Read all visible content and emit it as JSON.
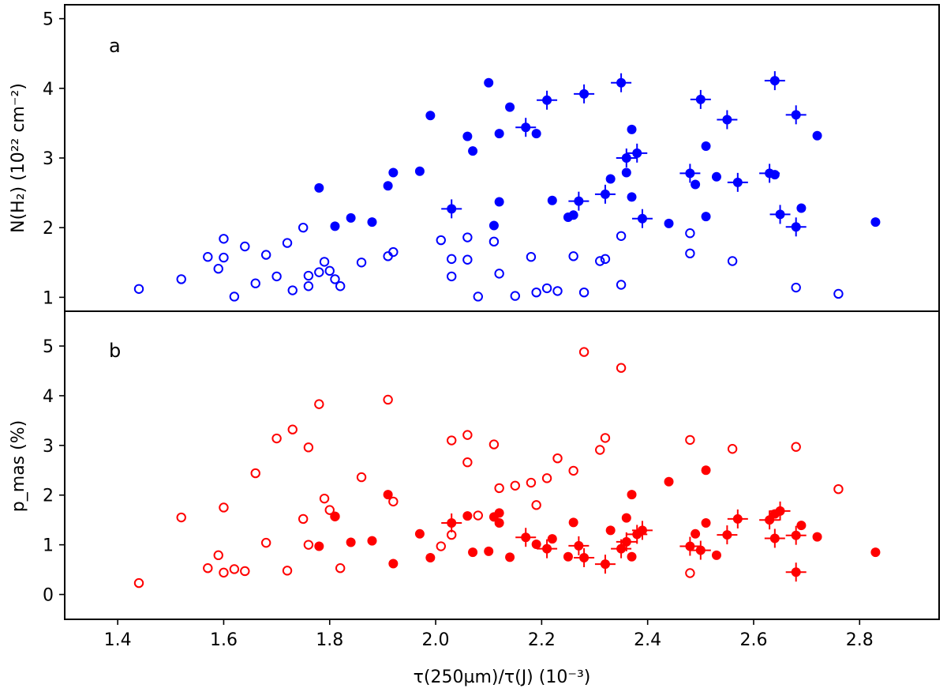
{
  "chart_data": [
    {
      "type": "scatter",
      "panel_label": "a",
      "ylabel": "N(H₂)  (10²² cm⁻²)",
      "xlim": [
        1.3,
        2.95
      ],
      "ylim": [
        0.8,
        5.2
      ],
      "yticks": [
        "1",
        "2",
        "3",
        "4",
        "5"
      ],
      "color": "#0000ff",
      "series": [
        {
          "marker": "open-circle",
          "points": [
            [
              1.44,
              1.12
            ],
            [
              1.52,
              1.26
            ],
            [
              1.57,
              1.58
            ],
            [
              1.59,
              1.41
            ],
            [
              1.6,
              1.84
            ],
            [
              1.6,
              1.57
            ],
            [
              1.62,
              1.01
            ],
            [
              1.64,
              1.73
            ],
            [
              1.66,
              1.2
            ],
            [
              1.68,
              1.61
            ],
            [
              1.7,
              1.3
            ],
            [
              1.72,
              1.78
            ],
            [
              1.73,
              1.1
            ],
            [
              1.75,
              2.0
            ],
            [
              1.76,
              1.31
            ],
            [
              1.76,
              1.16
            ],
            [
              1.78,
              1.36
            ],
            [
              1.79,
              1.51
            ],
            [
              1.8,
              1.38
            ],
            [
              1.81,
              1.26
            ],
            [
              1.82,
              1.16
            ],
            [
              1.86,
              1.5
            ],
            [
              1.91,
              1.59
            ],
            [
              1.92,
              1.65
            ],
            [
              2.01,
              1.82
            ],
            [
              2.03,
              1.3
            ],
            [
              2.03,
              1.55
            ],
            [
              2.06,
              1.54
            ],
            [
              2.06,
              1.86
            ],
            [
              2.08,
              1.01
            ],
            [
              2.11,
              1.8
            ],
            [
              2.12,
              1.34
            ],
            [
              2.15,
              1.02
            ],
            [
              2.18,
              1.58
            ],
            [
              2.19,
              1.07
            ],
            [
              2.21,
              1.13
            ],
            [
              2.23,
              1.09
            ],
            [
              2.26,
              1.59
            ],
            [
              2.28,
              1.07
            ],
            [
              2.31,
              1.52
            ],
            [
              2.32,
              1.55
            ],
            [
              2.35,
              1.88
            ],
            [
              2.35,
              1.18
            ],
            [
              2.48,
              1.92
            ],
            [
              2.48,
              1.63
            ],
            [
              2.56,
              1.52
            ],
            [
              2.68,
              1.14
            ],
            [
              2.76,
              1.05
            ]
          ]
        },
        {
          "marker": "filled-circle",
          "points": [
            [
              1.78,
              2.57
            ],
            [
              1.81,
              2.02
            ],
            [
              1.84,
              2.14
            ],
            [
              1.88,
              2.08
            ],
            [
              1.91,
              2.6
            ],
            [
              1.92,
              2.79
            ],
            [
              1.97,
              2.81
            ],
            [
              1.99,
              3.61
            ],
            [
              2.06,
              3.31
            ],
            [
              2.07,
              3.1
            ],
            [
              2.1,
              4.08
            ],
            [
              2.11,
              2.03
            ],
            [
              2.12,
              3.35
            ],
            [
              2.12,
              2.37
            ],
            [
              2.14,
              3.73
            ],
            [
              2.19,
              3.35
            ],
            [
              2.22,
              2.39
            ],
            [
              2.25,
              2.15
            ],
            [
              2.26,
              2.18
            ],
            [
              2.33,
              2.7
            ],
            [
              2.36,
              2.79
            ],
            [
              2.37,
              2.44
            ],
            [
              2.37,
              3.41
            ],
            [
              2.44,
              2.06
            ],
            [
              2.49,
              2.62
            ],
            [
              2.51,
              3.17
            ],
            [
              2.51,
              2.16
            ],
            [
              2.53,
              2.73
            ],
            [
              2.64,
              2.76
            ],
            [
              2.69,
              2.28
            ],
            [
              2.72,
              3.32
            ],
            [
              2.83,
              2.08
            ]
          ]
        },
        {
          "marker": "filled-circle-errorbars",
          "points": [
            [
              2.03,
              2.27
            ],
            [
              2.17,
              3.44
            ],
            [
              2.21,
              3.83
            ],
            [
              2.27,
              2.38
            ],
            [
              2.28,
              3.92
            ],
            [
              2.32,
              2.48
            ],
            [
              2.35,
              4.08
            ],
            [
              2.36,
              3.0
            ],
            [
              2.38,
              3.07
            ],
            [
              2.39,
              2.13
            ],
            [
              2.48,
              2.78
            ],
            [
              2.5,
              3.84
            ],
            [
              2.55,
              3.55
            ],
            [
              2.57,
              2.65
            ],
            [
              2.63,
              2.78
            ],
            [
              2.64,
              4.11
            ],
            [
              2.65,
              2.19
            ],
            [
              2.68,
              3.62
            ],
            [
              2.68,
              2.01
            ]
          ]
        }
      ]
    },
    {
      "type": "scatter",
      "panel_label": "b",
      "ylabel": "p_mas  (%)",
      "xlabel": "τ(250µm)/τ(J)  (10⁻³)",
      "xlim": [
        1.3,
        2.95
      ],
      "ylim": [
        -0.5,
        5.7
      ],
      "xticks": [
        "1.4",
        "1.6",
        "1.8",
        "2.0",
        "2.2",
        "2.4",
        "2.6",
        "2.8"
      ],
      "yticks": [
        "0",
        "1",
        "2",
        "3",
        "4",
        "5"
      ],
      "color": "#ff0000",
      "series": [
        {
          "marker": "open-circle",
          "points": [
            [
              1.44,
              0.23
            ],
            [
              1.52,
              1.55
            ],
            [
              1.57,
              0.53
            ],
            [
              1.59,
              0.79
            ],
            [
              1.6,
              0.44
            ],
            [
              1.6,
              1.75
            ],
            [
              1.62,
              0.51
            ],
            [
              1.64,
              0.47
            ],
            [
              1.66,
              2.44
            ],
            [
              1.68,
              1.04
            ],
            [
              1.7,
              3.14
            ],
            [
              1.72,
              0.48
            ],
            [
              1.73,
              3.32
            ],
            [
              1.75,
              1.52
            ],
            [
              1.76,
              2.96
            ],
            [
              1.76,
              1.0
            ],
            [
              1.78,
              3.83
            ],
            [
              1.79,
              1.93
            ],
            [
              1.8,
              1.7
            ],
            [
              1.81,
              1.57
            ],
            [
              1.82,
              0.53
            ],
            [
              1.86,
              2.36
            ],
            [
              1.91,
              3.92
            ],
            [
              1.92,
              1.87
            ],
            [
              2.01,
              0.97
            ],
            [
              2.03,
              3.1
            ],
            [
              2.03,
              1.2
            ],
            [
              2.06,
              2.66
            ],
            [
              2.06,
              3.21
            ],
            [
              2.08,
              1.59
            ],
            [
              2.11,
              3.02
            ],
            [
              2.12,
              2.14
            ],
            [
              2.15,
              2.19
            ],
            [
              2.18,
              2.25
            ],
            [
              2.19,
              1.8
            ],
            [
              2.21,
              2.34
            ],
            [
              2.23,
              2.74
            ],
            [
              2.26,
              2.49
            ],
            [
              2.28,
              4.88
            ],
            [
              2.31,
              2.91
            ],
            [
              2.32,
              3.15
            ],
            [
              2.35,
              4.56
            ],
            [
              2.48,
              3.11
            ],
            [
              2.48,
              0.43
            ],
            [
              2.56,
              2.93
            ],
            [
              2.68,
              2.97
            ],
            [
              2.76,
              2.12
            ]
          ]
        },
        {
          "marker": "filled-circle",
          "points": [
            [
              1.78,
              0.97
            ],
            [
              1.81,
              1.57
            ],
            [
              1.84,
              1.05
            ],
            [
              1.88,
              1.08
            ],
            [
              1.91,
              2.01
            ],
            [
              1.92,
              0.62
            ],
            [
              1.97,
              1.22
            ],
            [
              1.99,
              0.74
            ],
            [
              2.06,
              1.58
            ],
            [
              2.07,
              0.85
            ],
            [
              2.1,
              0.87
            ],
            [
              2.11,
              1.56
            ],
            [
              2.12,
              1.44
            ],
            [
              2.12,
              1.64
            ],
            [
              2.14,
              0.75
            ],
            [
              2.19,
              1.01
            ],
            [
              2.22,
              1.12
            ],
            [
              2.25,
              0.76
            ],
            [
              2.26,
              1.45
            ],
            [
              2.33,
              1.29
            ],
            [
              2.36,
              1.54
            ],
            [
              2.37,
              2.01
            ],
            [
              2.37,
              0.76
            ],
            [
              2.44,
              2.27
            ],
            [
              2.49,
              1.22
            ],
            [
              2.51,
              1.44
            ],
            [
              2.51,
              2.5
            ],
            [
              2.53,
              0.79
            ],
            [
              2.64,
              1.62
            ],
            [
              2.69,
              1.39
            ],
            [
              2.72,
              1.16
            ],
            [
              2.83,
              0.85
            ]
          ]
        },
        {
          "marker": "filled-circle-errorbars",
          "points": [
            [
              2.03,
              1.44
            ],
            [
              2.17,
              1.15
            ],
            [
              2.21,
              0.92
            ],
            [
              2.27,
              0.98
            ],
            [
              2.28,
              0.74
            ],
            [
              2.32,
              0.61
            ],
            [
              2.35,
              0.92
            ],
            [
              2.36,
              1.06
            ],
            [
              2.38,
              1.21
            ],
            [
              2.39,
              1.29
            ],
            [
              2.48,
              0.97
            ],
            [
              2.5,
              0.89
            ],
            [
              2.55,
              1.2
            ],
            [
              2.57,
              1.52
            ],
            [
              2.63,
              1.5
            ],
            [
              2.64,
              1.13
            ],
            [
              2.65,
              1.68
            ],
            [
              2.68,
              1.19
            ],
            [
              2.68,
              0.45
            ]
          ]
        }
      ]
    }
  ]
}
